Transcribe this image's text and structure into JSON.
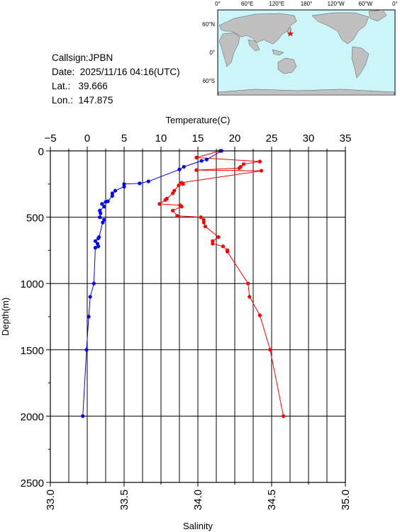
{
  "info": {
    "callsign": "Callsign:JPBN",
    "date": "Date:  2025/11/16 04:16(UTC)",
    "lat": "Lat.:   39.666",
    "lon": "Lon.:  147.875"
  },
  "map": {
    "top_labels": [
      "0°",
      "60°E",
      "120°E",
      "180°",
      "120°W",
      "60°W",
      "0°"
    ],
    "lat_labels": [
      "60°N",
      "0°",
      "60°S"
    ],
    "station": {
      "lat": 39.666,
      "lon": 147.875
    },
    "colors": {
      "ocean": "#ccf5fa",
      "land": "#c0c0c0",
      "marker": "#ff0000"
    }
  },
  "chart_data": {
    "type": "line",
    "ylabel": "Depth(m)",
    "ylim": [
      2500,
      0
    ],
    "top_axis": {
      "label": "Temperature(C)",
      "range": [
        -5,
        35
      ],
      "ticks": [
        "−5",
        "0",
        "5",
        "10",
        "15",
        "20",
        "25",
        "30",
        "35"
      ]
    },
    "bottom_axis": {
      "label": "Salinity",
      "range": [
        33.0,
        35.0
      ],
      "ticks": [
        "33.0",
        "33.5",
        "34.0",
        "34.5",
        "35.0"
      ]
    },
    "y_ticks": [
      "0",
      "500",
      "1000",
      "1500",
      "2000",
      "2500"
    ],
    "grid": true,
    "series": [
      {
        "color": "#ff0000",
        "axis": "salinity",
        "points": [
          [
            34.15,
            0
          ],
          [
            33.99,
            50
          ],
          [
            34.42,
            80
          ],
          [
            34.31,
            100
          ],
          [
            34.29,
            120
          ],
          [
            34.28,
            130
          ],
          [
            33.99,
            145
          ],
          [
            34.43,
            150
          ],
          [
            33.89,
            240
          ],
          [
            33.9,
            250
          ],
          [
            33.87,
            260
          ],
          [
            33.84,
            300
          ],
          [
            33.83,
            320
          ],
          [
            33.79,
            360
          ],
          [
            33.78,
            370
          ],
          [
            33.74,
            400
          ],
          [
            33.88,
            410
          ],
          [
            33.89,
            420
          ],
          [
            33.83,
            450
          ],
          [
            33.86,
            490
          ],
          [
            34.02,
            500
          ],
          [
            34.04,
            520
          ],
          [
            34.04,
            540
          ],
          [
            34.05,
            570
          ],
          [
            34.14,
            650
          ],
          [
            34.1,
            680
          ],
          [
            34.1,
            700
          ],
          [
            34.17,
            720
          ],
          [
            34.2,
            750
          ],
          [
            34.2,
            760
          ],
          [
            34.34,
            1000
          ],
          [
            34.35,
            1100
          ],
          [
            34.42,
            1240
          ],
          [
            34.49,
            1500
          ],
          [
            34.58,
            2000
          ]
        ]
      },
      {
        "color": "#0000ff",
        "axis": "temperature",
        "points": [
          [
            18.2,
            0
          ],
          [
            16.2,
            65
          ],
          [
            15.5,
            75
          ],
          [
            13.1,
            120
          ],
          [
            12.5,
            140
          ],
          [
            8.3,
            230
          ],
          [
            7.1,
            245
          ],
          [
            5.0,
            250
          ],
          [
            5.0,
            270
          ],
          [
            3.8,
            300
          ],
          [
            3.4,
            320
          ],
          [
            3.4,
            340
          ],
          [
            2.8,
            380
          ],
          [
            2.5,
            385
          ],
          [
            2.0,
            400
          ],
          [
            2.3,
            420
          ],
          [
            1.7,
            450
          ],
          [
            1.8,
            470
          ],
          [
            1.7,
            500
          ],
          [
            2.3,
            520
          ],
          [
            2.1,
            540
          ],
          [
            1.6,
            650
          ],
          [
            1.5,
            660
          ],
          [
            1.1,
            680
          ],
          [
            1.4,
            700
          ],
          [
            1.5,
            720
          ],
          [
            1.1,
            730
          ],
          [
            0.9,
            1000
          ],
          [
            0.4,
            1100
          ],
          [
            0.2,
            1250
          ],
          [
            -0.1,
            1500
          ],
          [
            -0.6,
            2000
          ]
        ]
      }
    ]
  }
}
